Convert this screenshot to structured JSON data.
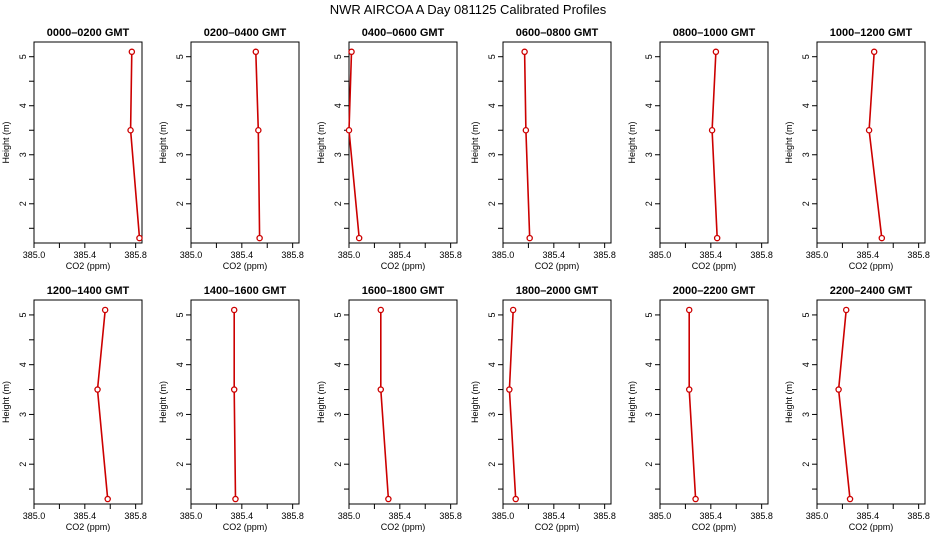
{
  "figure": {
    "title": "NWR AIRCOA A  Day 081125  Calibrated Profiles"
  },
  "style": {
    "line_color": "#cc0000",
    "marker_color": "#cc0000",
    "axis_color": "#000000",
    "marker": "open-circle"
  },
  "chart_data": [
    {
      "type": "line",
      "title": "0000–0200 GMT",
      "xlabel": "CO2 (ppm)",
      "ylabel": "Height (m)",
      "xlim": [
        385.0,
        385.85
      ],
      "ylim": [
        1.2,
        5.3
      ],
      "xticks": [
        "385.0",
        "385.4",
        "385.8"
      ],
      "yticks": [
        "2",
        "3",
        "4",
        "5"
      ],
      "grid": false,
      "x": [
        385.83,
        385.76,
        385.77
      ],
      "y": [
        1.3,
        3.5,
        5.1
      ]
    },
    {
      "type": "line",
      "title": "0200–0400 GMT",
      "xlabel": "CO2 (ppm)",
      "ylabel": "Height (m)",
      "xlim": [
        385.0,
        385.85
      ],
      "ylim": [
        1.2,
        5.3
      ],
      "xticks": [
        "385.0",
        "385.4",
        "385.8"
      ],
      "yticks": [
        "2",
        "3",
        "4",
        "5"
      ],
      "grid": false,
      "x": [
        385.54,
        385.53,
        385.51
      ],
      "y": [
        1.3,
        3.5,
        5.1
      ]
    },
    {
      "type": "line",
      "title": "0400–0600 GMT",
      "xlabel": "CO2 (ppm)",
      "ylabel": "Height (m)",
      "xlim": [
        385.0,
        385.85
      ],
      "ylim": [
        1.2,
        5.3
      ],
      "xticks": [
        "385.0",
        "385.4",
        "385.8"
      ],
      "yticks": [
        "2",
        "3",
        "4",
        "5"
      ],
      "grid": false,
      "x": [
        385.08,
        385.0,
        385.02
      ],
      "y": [
        1.3,
        3.5,
        5.1
      ]
    },
    {
      "type": "line",
      "title": "0600–0800 GMT",
      "xlabel": "CO2 (ppm)",
      "ylabel": "Height (m)",
      "xlim": [
        385.0,
        385.85
      ],
      "ylim": [
        1.2,
        5.3
      ],
      "xticks": [
        "385.0",
        "385.4",
        "385.8"
      ],
      "yticks": [
        "2",
        "3",
        "4",
        "5"
      ],
      "grid": false,
      "x": [
        385.21,
        385.18,
        385.17
      ],
      "y": [
        1.3,
        3.5,
        5.1
      ]
    },
    {
      "type": "line",
      "title": "0800–1000 GMT",
      "xlabel": "CO2 (ppm)",
      "ylabel": "Height (m)",
      "xlim": [
        385.0,
        385.85
      ],
      "ylim": [
        1.2,
        5.3
      ],
      "xticks": [
        "385.0",
        "385.4",
        "385.8"
      ],
      "yticks": [
        "2",
        "3",
        "4",
        "5"
      ],
      "grid": false,
      "x": [
        385.45,
        385.41,
        385.44
      ],
      "y": [
        1.3,
        3.5,
        5.1
      ]
    },
    {
      "type": "line",
      "title": "1000–1200 GMT",
      "xlabel": "CO2 (ppm)",
      "ylabel": "Height (m)",
      "xlim": [
        385.0,
        385.85
      ],
      "ylim": [
        1.2,
        5.3
      ],
      "xticks": [
        "385.0",
        "385.4",
        "385.8"
      ],
      "yticks": [
        "2",
        "3",
        "4",
        "5"
      ],
      "grid": false,
      "x": [
        385.51,
        385.41,
        385.45
      ],
      "y": [
        1.3,
        3.5,
        5.1
      ]
    },
    {
      "type": "line",
      "title": "1200–1400 GMT",
      "xlabel": "CO2 (ppm)",
      "ylabel": "Height (m)",
      "xlim": [
        385.0,
        385.85
      ],
      "ylim": [
        1.2,
        5.3
      ],
      "xticks": [
        "385.0",
        "385.4",
        "385.8"
      ],
      "yticks": [
        "2",
        "3",
        "4",
        "5"
      ],
      "grid": false,
      "x": [
        385.58,
        385.5,
        385.56
      ],
      "y": [
        1.3,
        3.5,
        5.1
      ]
    },
    {
      "type": "line",
      "title": "1400–1600 GMT",
      "xlabel": "CO2 (ppm)",
      "ylabel": "Height (m)",
      "xlim": [
        385.0,
        385.85
      ],
      "ylim": [
        1.2,
        5.3
      ],
      "xticks": [
        "385.0",
        "385.4",
        "385.8"
      ],
      "yticks": [
        "2",
        "3",
        "4",
        "5"
      ],
      "grid": false,
      "x": [
        385.35,
        385.34,
        385.34
      ],
      "y": [
        1.3,
        3.5,
        5.1
      ]
    },
    {
      "type": "line",
      "title": "1600–1800 GMT",
      "xlabel": "CO2 (ppm)",
      "ylabel": "Height (m)",
      "xlim": [
        385.0,
        385.85
      ],
      "ylim": [
        1.2,
        5.3
      ],
      "xticks": [
        "385.0",
        "385.4",
        "385.8"
      ],
      "yticks": [
        "2",
        "3",
        "4",
        "5"
      ],
      "grid": false,
      "x": [
        385.31,
        385.25,
        385.25
      ],
      "y": [
        1.3,
        3.5,
        5.1
      ]
    },
    {
      "type": "line",
      "title": "1800–2000 GMT",
      "xlabel": "CO2 (ppm)",
      "ylabel": "Height (m)",
      "xlim": [
        385.0,
        385.85
      ],
      "ylim": [
        1.2,
        5.3
      ],
      "xticks": [
        "385.0",
        "385.4",
        "385.8"
      ],
      "yticks": [
        "2",
        "3",
        "4",
        "5"
      ],
      "grid": false,
      "x": [
        385.1,
        385.05,
        385.08
      ],
      "y": [
        1.3,
        3.5,
        5.1
      ]
    },
    {
      "type": "line",
      "title": "2000–2200 GMT",
      "xlabel": "CO2 (ppm)",
      "ylabel": "Height (m)",
      "xlim": [
        385.0,
        385.85
      ],
      "ylim": [
        1.2,
        5.3
      ],
      "xticks": [
        "385.0",
        "385.4",
        "385.8"
      ],
      "yticks": [
        "2",
        "3",
        "4",
        "5"
      ],
      "grid": false,
      "x": [
        385.28,
        385.23,
        385.23
      ],
      "y": [
        1.3,
        3.5,
        5.1
      ]
    },
    {
      "type": "line",
      "title": "2200–2400 GMT",
      "xlabel": "CO2 (ppm)",
      "ylabel": "Height (m)",
      "xlim": [
        385.0,
        385.85
      ],
      "ylim": [
        1.2,
        5.3
      ],
      "xticks": [
        "385.0",
        "385.4",
        "385.8"
      ],
      "yticks": [
        "2",
        "3",
        "4",
        "5"
      ],
      "grid": false,
      "x": [
        385.26,
        385.17,
        385.23
      ],
      "y": [
        1.3,
        3.5,
        5.1
      ]
    }
  ]
}
